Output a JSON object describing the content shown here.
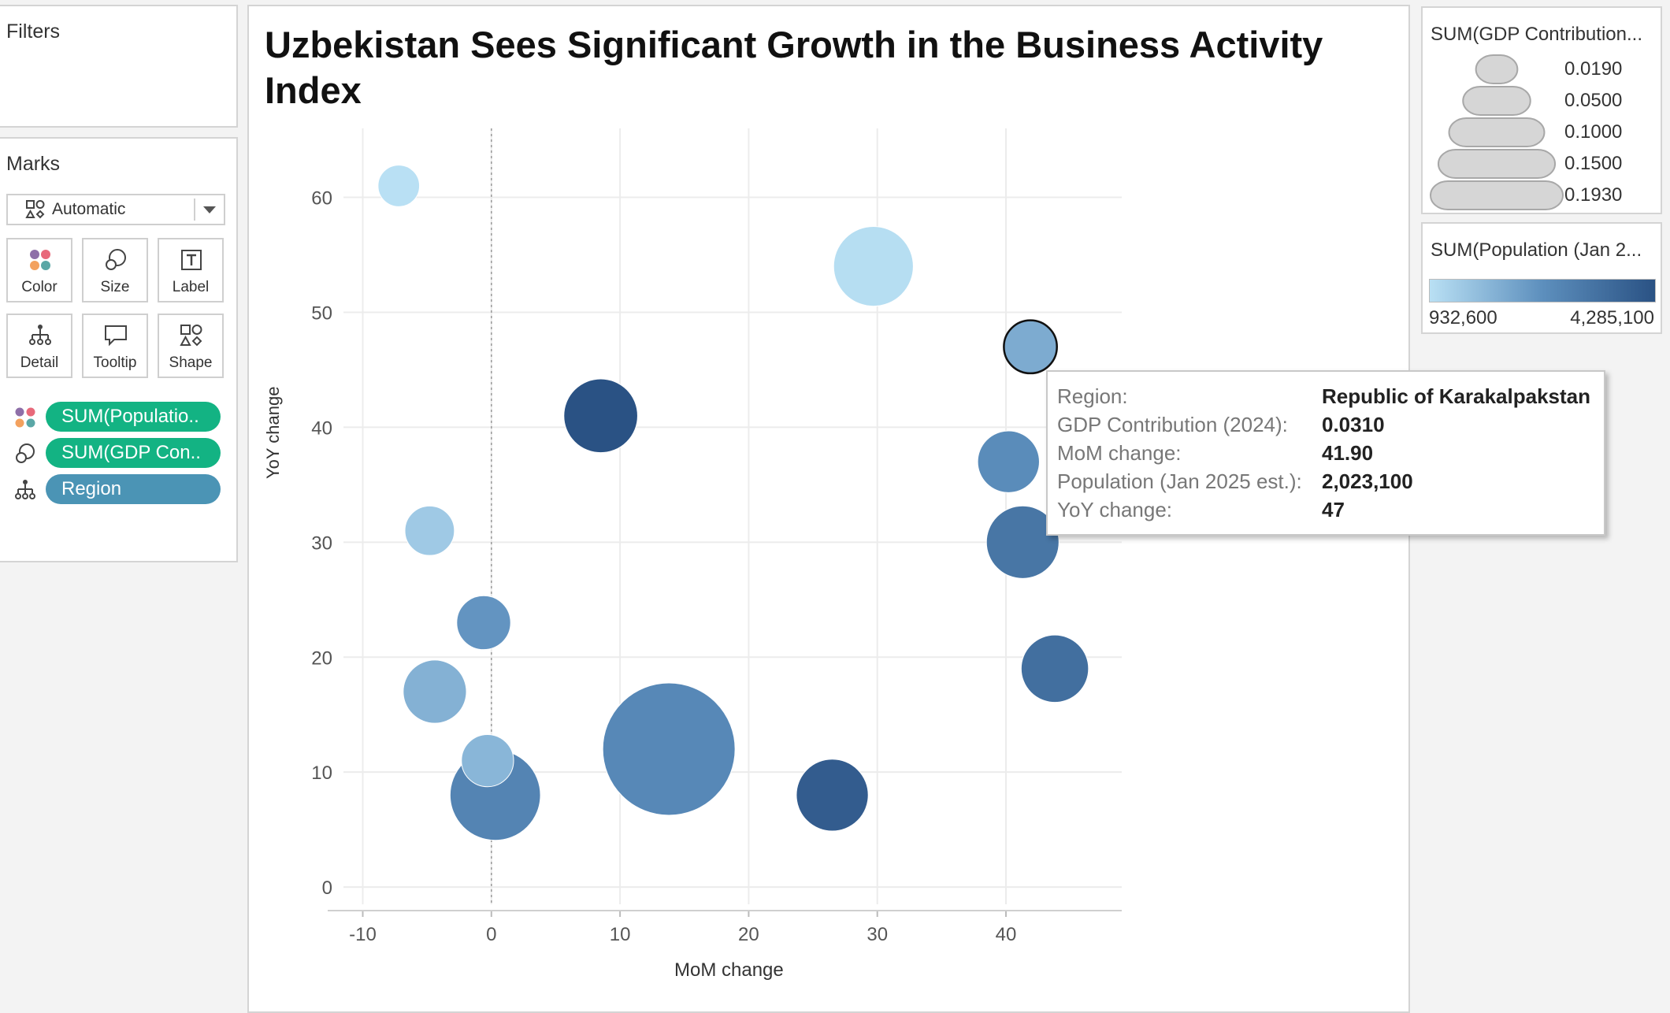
{
  "filters": {
    "title": "Filters"
  },
  "marks": {
    "title": "Marks",
    "mark_type": "Automatic",
    "buttons": {
      "color": "Color",
      "size": "Size",
      "label": "Label",
      "detail": "Detail",
      "tooltip": "Tooltip",
      "shape": "Shape"
    },
    "pills": [
      {
        "label": "SUM(Populatio..",
        "type": "color"
      },
      {
        "label": "SUM(GDP Con..",
        "type": "size"
      },
      {
        "label": "Region",
        "type": "detail"
      }
    ]
  },
  "chart_data": {
    "type": "scatter",
    "title": "Uzbekistan Sees Significant Growth in the Business Activity Index",
    "xlabel": "MoM change",
    "ylabel": "YoY change",
    "xlim": [
      -11.5,
      49
    ],
    "ylim": [
      -1.5,
      66
    ],
    "x_ticks": [
      "-10",
      "0",
      "10",
      "20",
      "30",
      "40"
    ],
    "y_ticks": [
      "0",
      "10",
      "20",
      "30",
      "40",
      "50",
      "60"
    ],
    "reference_line_x": 0,
    "color_field": "Population (Jan 2025 est.)",
    "size_field": "GDP Contribution (2024)",
    "points": [
      {
        "x": -7.2,
        "y": 61,
        "size": 0.019,
        "population": 932600
      },
      {
        "x": 29.7,
        "y": 54,
        "size": 0.07,
        "population": 980000
      },
      {
        "x": 41.9,
        "y": 47,
        "size": 0.031,
        "population": 2023100,
        "highlighted": true
      },
      {
        "x": 8.5,
        "y": 41,
        "size": 0.06,
        "population": 4285100
      },
      {
        "x": 40.2,
        "y": 37,
        "size": 0.042,
        "population": 2700000
      },
      {
        "x": -4.8,
        "y": 31,
        "size": 0.027,
        "population": 1400000
      },
      {
        "x": 41.3,
        "y": 30,
        "size": 0.058,
        "population": 3300000
      },
      {
        "x": -0.6,
        "y": 23,
        "size": 0.032,
        "population": 2500000
      },
      {
        "x": 43.8,
        "y": 19,
        "size": 0.05,
        "population": 3500000
      },
      {
        "x": -4.4,
        "y": 17,
        "size": 0.044,
        "population": 1900000
      },
      {
        "x": 13.8,
        "y": 12,
        "size": 0.193,
        "population": 2800000
      },
      {
        "x": -0.3,
        "y": 11,
        "size": 0.03,
        "population": 1800000
      },
      {
        "x": 0.3,
        "y": 8,
        "size": 0.09,
        "population": 2900000
      },
      {
        "x": 26.5,
        "y": 8,
        "size": 0.057,
        "population": 4000000
      }
    ]
  },
  "tooltip": {
    "rows": [
      {
        "key": "Region:",
        "value": "Republic of Karakalpakstan"
      },
      {
        "key": "GDP Contribution (2024):",
        "value": "0.0310"
      },
      {
        "key": "MoM change:",
        "value": "41.90"
      },
      {
        "key": "Population (Jan 2025 est.):",
        "value": "2,023,100"
      },
      {
        "key": "YoY change:",
        "value": "47"
      }
    ]
  },
  "size_legend": {
    "title": "SUM(GDP Contribution...",
    "items": [
      "0.0190",
      "0.0500",
      "0.1000",
      "0.1500",
      "0.1930"
    ],
    "values": [
      0.019,
      0.05,
      0.1,
      0.15,
      0.193
    ]
  },
  "color_legend": {
    "title": "SUM(Population (Jan 2...",
    "min_label": "932,600",
    "max_label": "4,285,100",
    "min": 932600,
    "max": 4285100,
    "colors": {
      "low": "#b9e0f4",
      "mid": "#5d8fbd",
      "high": "#2a5284"
    }
  }
}
